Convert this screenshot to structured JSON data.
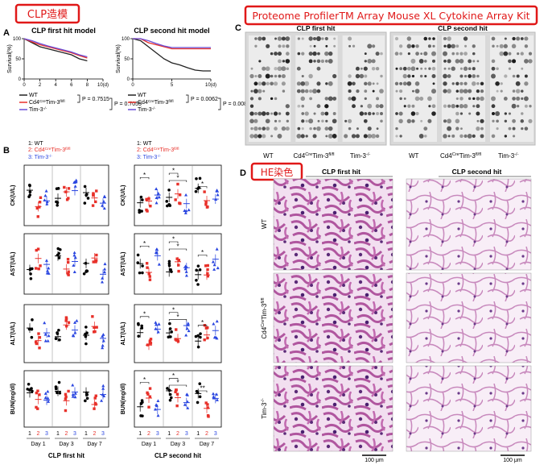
{
  "header": {
    "left_tag": "CLP造模",
    "right_tag": "Proteome ProfilerTM Array Mouse XL Cytokine Array Kit"
  },
  "panel_a": {
    "label": "A",
    "legend": {
      "wt": "WT",
      "cd4": "Cd4",
      "cre": "Cre",
      "tim": "Tim-3",
      "flfl": "fl/fl",
      "tim_ko": "Tim-3",
      "ko": "-/-"
    },
    "charts": [
      {
        "type": "line",
        "title": "CLP first hit model",
        "y_label": "Survival(%)",
        "x": [
          0,
          1,
          2,
          3,
          4,
          5,
          6,
          7,
          8
        ],
        "series": [
          {
            "name": "WT",
            "color": "#222222",
            "values": [
              100,
              90,
              80,
              75,
              70,
              65,
              60,
              50,
              45
            ]
          },
          {
            "name": "Cd4-Cre Tim-3 fl/fl",
            "color": "#e8312a",
            "values": [
              100,
              92,
              85,
              80,
              75,
              70,
              65,
              58,
              52
            ]
          },
          {
            "name": "Tim-3 -/-",
            "color": "#6a4fd8",
            "values": [
              100,
              95,
              88,
              82,
              77,
              72,
              67,
              60,
              55
            ]
          }
        ],
        "xlim": [
          0,
          10
        ],
        "xticks": [
          0,
          2,
          4,
          6,
          8,
          {
            "value": 10,
            "label": "10(d)"
          }
        ],
        "ylim": [
          0,
          100
        ],
        "yticks": [
          0,
          50,
          100
        ],
        "p_values": [
          "P = 0.7515",
          "P = 0.7055"
        ]
      },
      {
        "type": "line",
        "title": "CLP second hit model",
        "y_label": "Survival(%)",
        "x": [
          0,
          1,
          2,
          3,
          4,
          5,
          6,
          7,
          8,
          9,
          10
        ],
        "series": [
          {
            "name": "WT",
            "color": "#222222",
            "values": [
              100,
              95,
              80,
              65,
              50,
              40,
              35,
              28,
              22,
              20,
              20
            ]
          },
          {
            "name": "Cd4-Cre Tim-3 fl/fl",
            "color": "#e8312a",
            "values": [
              100,
              100,
              90,
              85,
              80,
              75,
              75,
              75,
              75,
              75,
              75
            ]
          },
          {
            "name": "Tim-3 -/-",
            "color": "#6a4fd8",
            "values": [
              100,
              100,
              95,
              88,
              82,
              78,
              78,
              78,
              78,
              78,
              78
            ]
          }
        ],
        "xlim": [
          0,
          10
        ],
        "xticks": [
          0,
          5,
          {
            "value": 10,
            "label": "10(d)"
          }
        ],
        "ylim": [
          0,
          100
        ],
        "yticks": [
          0,
          50,
          100
        ],
        "p_values": [
          "P = 0.0062",
          "P = 0.0080"
        ]
      }
    ]
  },
  "panel_b": {
    "label": "B",
    "legend": {
      "g1": "1: WT",
      "g2": "2: Cd4",
      "cre": "Cre",
      "tim": "Tim-3",
      "flfl": "fl/fl",
      "g3": "3: Tim-3",
      "ko": "-/-"
    },
    "y_labels": [
      "CK(U/L)",
      "AST(U/L)",
      "ALT(U/L)",
      "BUN(mg/dl)"
    ],
    "group_numbers": [
      "1",
      "2",
      "3"
    ],
    "days": [
      "Day 1",
      "Day 3",
      "Day 7"
    ],
    "column_titles": [
      "CLP first hit",
      "CLP second hit"
    ],
    "second_hit_stars": [
      [
        "*",
        "*",
        "*",
        "*"
      ],
      [
        "*",
        "*",
        "*",
        "*"
      ],
      [
        "*",
        "*",
        "*",
        "*"
      ],
      [
        "*",
        "*",
        "*",
        "**"
      ]
    ]
  },
  "panel_c": {
    "label": "C",
    "titles": [
      "CLP first hit",
      "CLP second hit"
    ],
    "columns": {
      "wt": "WT",
      "cd4": "Cd4",
      "cre": "Cre",
      "tim": "Tim-3",
      "flfl": "fl/fl",
      "tim_ko": "Tim-3",
      "ko": "-/-"
    }
  },
  "panel_d": {
    "label": "D",
    "tag": "HE染色",
    "titles": [
      "CLP first hit",
      "CLP second hit"
    ],
    "rows": {
      "wt": "WT",
      "cd4": "Cd4",
      "cre": "Cre",
      "tim": "Tim-3",
      "flfl": "fl/fl",
      "tim_ko": "Tim-3",
      "ko": "-/-"
    },
    "scale_bar": "100 μm"
  }
}
